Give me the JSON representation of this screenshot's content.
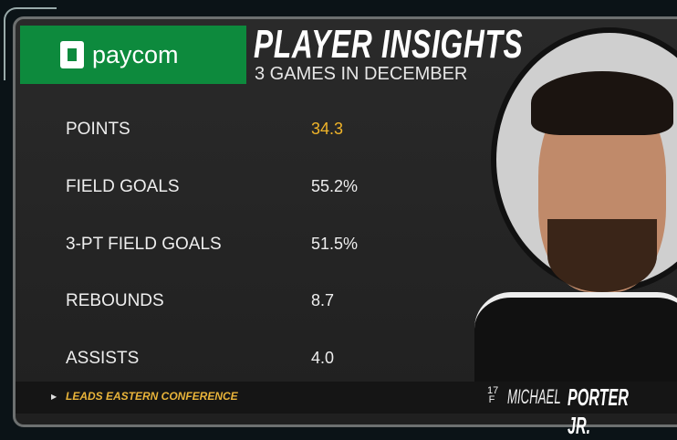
{
  "sponsor": {
    "name": "paycom"
  },
  "header": {
    "title": "PLAYER INSIGHTS",
    "subtitle": "3 GAMES IN DECEMBER"
  },
  "stats": [
    {
      "label": "POINTS",
      "value": "34.3",
      "highlight": true
    },
    {
      "label": "FIELD GOALS",
      "value": "55.2%"
    },
    {
      "label": "3-PT FIELD GOALS",
      "value": "51.5%"
    },
    {
      "label": "REBOUNDS",
      "value": "8.7"
    },
    {
      "label": "ASSISTS",
      "value": "4.0"
    }
  ],
  "footer": {
    "note": "LEADS EASTERN CONFERENCE",
    "jersey_number": "17",
    "position": "F",
    "first_name": "MICHAEL",
    "last_name": "PORTER JR."
  },
  "colors": {
    "sponsor_green": "#0d8a3d",
    "highlight": "#f0b429"
  }
}
